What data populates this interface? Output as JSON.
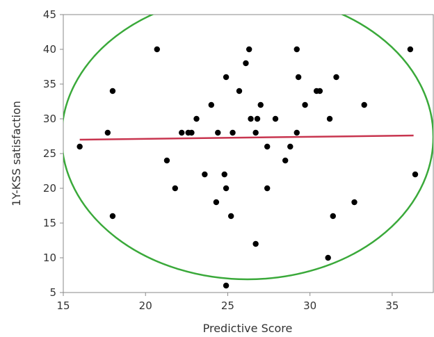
{
  "chart_data": {
    "type": "scatter",
    "xlabel": "Predictive Score",
    "ylabel": "1Y-KSS satisfaction",
    "xlim": [
      15,
      37.5
    ],
    "ylim": [
      5,
      45
    ],
    "xticks": [
      15,
      20,
      25,
      30,
      35
    ],
    "yticks": [
      5,
      10,
      15,
      20,
      25,
      30,
      35,
      40,
      45
    ],
    "grid": false,
    "series": [
      {
        "color": "#000000",
        "points": [
          {
            "x": 16.0,
            "y": 26
          },
          {
            "x": 17.7,
            "y": 28
          },
          {
            "x": 18.0,
            "y": 34
          },
          {
            "x": 18.0,
            "y": 16
          },
          {
            "x": 20.7,
            "y": 40
          },
          {
            "x": 21.3,
            "y": 24
          },
          {
            "x": 21.8,
            "y": 20
          },
          {
            "x": 22.2,
            "y": 28
          },
          {
            "x": 22.6,
            "y": 28
          },
          {
            "x": 22.8,
            "y": 28
          },
          {
            "x": 23.1,
            "y": 30
          },
          {
            "x": 23.6,
            "y": 22
          },
          {
            "x": 24.0,
            "y": 32
          },
          {
            "x": 24.3,
            "y": 18
          },
          {
            "x": 24.4,
            "y": 28
          },
          {
            "x": 24.8,
            "y": 22
          },
          {
            "x": 24.9,
            "y": 20
          },
          {
            "x": 24.9,
            "y": 36
          },
          {
            "x": 24.9,
            "y": 6
          },
          {
            "x": 25.2,
            "y": 16
          },
          {
            "x": 25.3,
            "y": 28
          },
          {
            "x": 25.7,
            "y": 34
          },
          {
            "x": 26.1,
            "y": 38
          },
          {
            "x": 26.3,
            "y": 40
          },
          {
            "x": 26.4,
            "y": 30
          },
          {
            "x": 26.7,
            "y": 12
          },
          {
            "x": 26.7,
            "y": 28
          },
          {
            "x": 26.8,
            "y": 30
          },
          {
            "x": 27.0,
            "y": 32
          },
          {
            "x": 27.4,
            "y": 26
          },
          {
            "x": 27.4,
            "y": 20
          },
          {
            "x": 27.9,
            "y": 30
          },
          {
            "x": 28.5,
            "y": 24
          },
          {
            "x": 28.8,
            "y": 26
          },
          {
            "x": 29.2,
            "y": 28
          },
          {
            "x": 29.2,
            "y": 40
          },
          {
            "x": 29.3,
            "y": 36
          },
          {
            "x": 29.7,
            "y": 32
          },
          {
            "x": 30.4,
            "y": 34
          },
          {
            "x": 30.6,
            "y": 34
          },
          {
            "x": 31.1,
            "y": 10
          },
          {
            "x": 31.2,
            "y": 30
          },
          {
            "x": 31.4,
            "y": 16
          },
          {
            "x": 31.6,
            "y": 36
          },
          {
            "x": 32.7,
            "y": 18
          },
          {
            "x": 33.3,
            "y": 32
          },
          {
            "x": 36.1,
            "y": 40
          },
          {
            "x": 36.4,
            "y": 22
          }
        ]
      }
    ],
    "fit_line": {
      "color": "#c8354f",
      "x": [
        16.0,
        36.3
      ],
      "y": [
        27.0,
        27.6
      ]
    },
    "density_ellipse": {
      "color": "#3aa93a",
      "center_x": 26.2,
      "center_y": 27.4,
      "radius_x": 11.3,
      "radius_y": 20.5
    }
  }
}
